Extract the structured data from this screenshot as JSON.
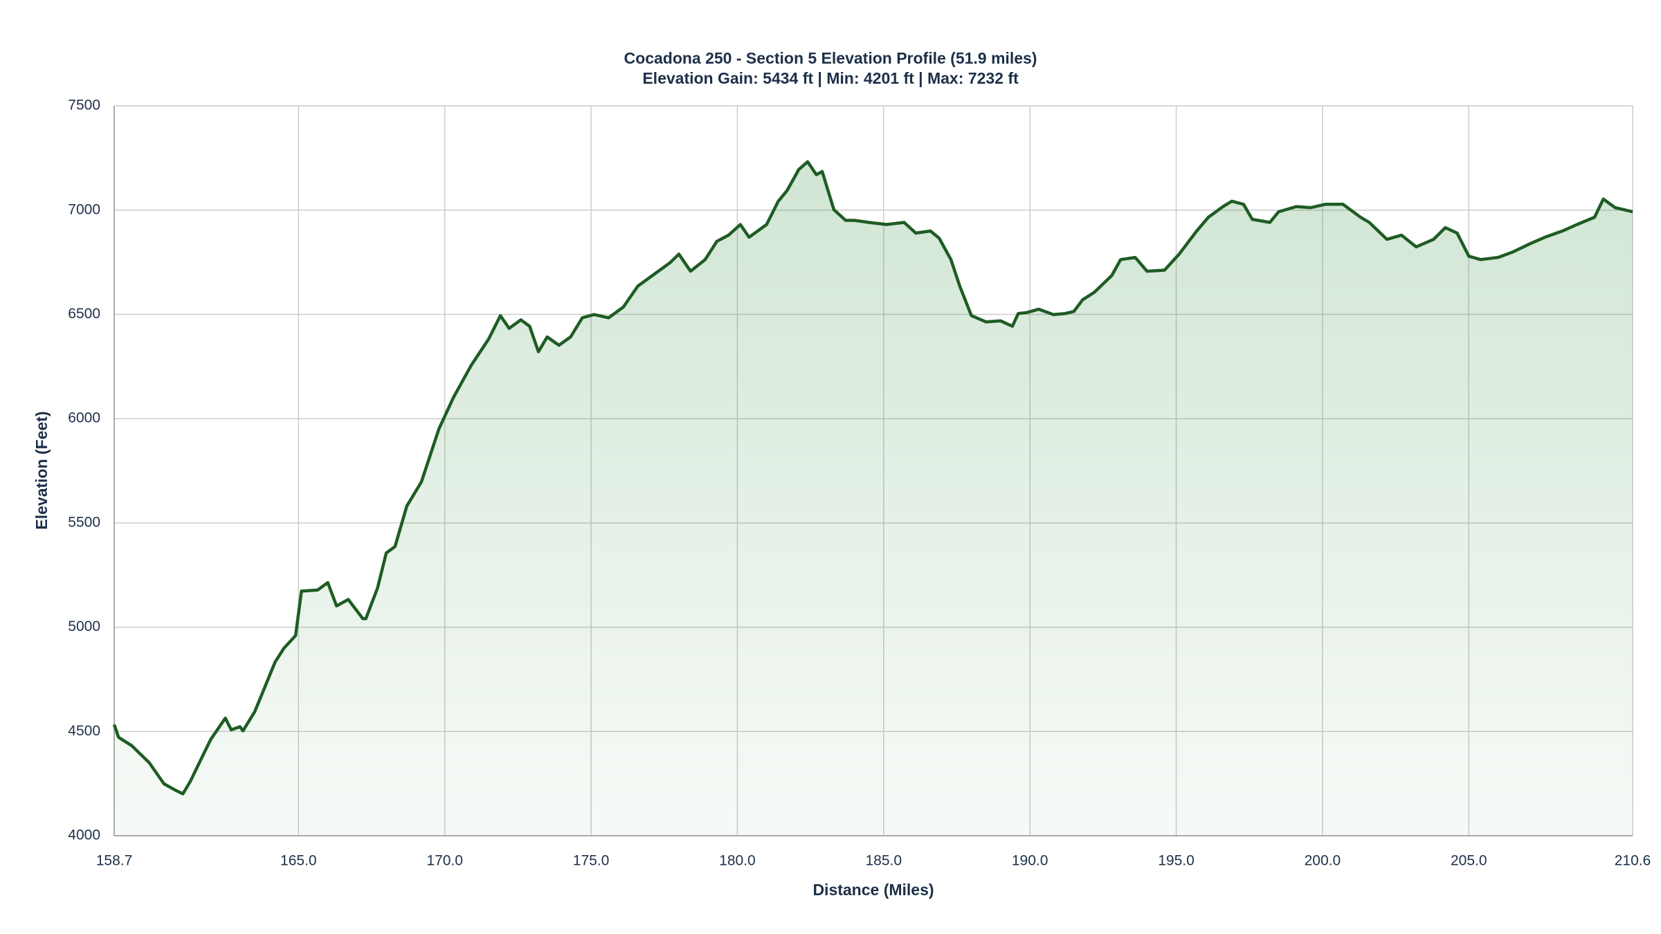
{
  "chart_data": {
    "type": "area",
    "title": "Cocadona 250 - Section 5 Elevation Profile (51.9 miles)",
    "subtitle": "Elevation Gain: 5434 ft | Min: 4201 ft | Max: 7232 ft",
    "x_label": "Distance (Miles)",
    "y_label": "Elevation (Feet)",
    "color": "#1e5c24",
    "grid": true,
    "xlim": [
      158.7,
      210.6
    ],
    "xticks": [
      158.7,
      {
        "value": 165,
        "label": "165.0"
      },
      {
        "value": 170,
        "label": "170.0"
      },
      {
        "value": 175,
        "label": "175.0"
      },
      {
        "value": 180,
        "label": "180.0"
      },
      {
        "value": 185,
        "label": "185.0"
      },
      {
        "value": 190,
        "label": "190.0"
      },
      {
        "value": 195,
        "label": "195.0"
      },
      {
        "value": 200,
        "label": "200.0"
      },
      {
        "value": 205,
        "label": "205.0"
      },
      210.6
    ],
    "ylim": [
      4000,
      7500
    ],
    "yticks": [
      4000,
      4500,
      5000,
      5500,
      6000,
      6500,
      7000,
      7500
    ],
    "x": [
      158.7,
      158.85,
      159.3,
      159.9,
      160.4,
      160.8,
      161.05,
      161.3,
      161.7,
      162.0,
      162.5,
      162.7,
      163.0,
      163.1,
      163.5,
      163.8,
      164.2,
      164.5,
      164.9,
      165.1,
      165.65,
      166.0,
      166.3,
      166.7,
      167.2,
      167.3,
      167.7,
      168.0,
      168.3,
      168.7,
      169.2,
      169.8,
      170.3,
      170.9,
      171.5,
      171.9,
      172.2,
      172.6,
      172.9,
      173.2,
      173.5,
      173.9,
      174.3,
      174.7,
      175.1,
      175.6,
      176.1,
      176.6,
      177.2,
      177.7,
      178.0,
      178.4,
      178.9,
      179.3,
      179.7,
      180.1,
      180.4,
      181.0,
      181.4,
      181.7,
      182.1,
      182.4,
      182.7,
      182.9,
      183.3,
      183.7,
      184.0,
      184.5,
      185.1,
      185.7,
      186.1,
      186.6,
      186.9,
      187.3,
      187.6,
      188.0,
      188.5,
      189.0,
      189.4,
      189.6,
      189.9,
      190.3,
      190.8,
      191.2,
      191.5,
      191.8,
      192.2,
      192.8,
      193.1,
      193.6,
      194.0,
      194.6,
      195.1,
      195.7,
      196.1,
      196.6,
      196.9,
      197.3,
      197.6,
      198.2,
      198.5,
      199.1,
      199.6,
      200.1,
      200.7,
      201.3,
      201.6,
      202.2,
      202.7,
      203.2,
      203.8,
      204.2,
      204.6,
      205.0,
      205.4,
      206.0,
      206.5,
      207.1,
      207.6,
      208.2,
      208.7,
      209.3,
      209.6,
      210.0,
      210.6
    ],
    "values": [
      4533,
      4472,
      4432,
      4350,
      4249,
      4218,
      4201,
      4260,
      4376,
      4462,
      4564,
      4508,
      4523,
      4503,
      4594,
      4696,
      4833,
      4899,
      4960,
      5173,
      5178,
      5214,
      5102,
      5133,
      5041,
      5041,
      5188,
      5356,
      5387,
      5580,
      5697,
      5951,
      6103,
      6255,
      6382,
      6494,
      6433,
      6474,
      6443,
      6321,
      6392,
      6352,
      6392,
      6484,
      6499,
      6484,
      6535,
      6636,
      6697,
      6748,
      6789,
      6707,
      6763,
      6850,
      6880,
      6931,
      6870,
      6931,
      7043,
      7094,
      7195,
      7232,
      7170,
      7185,
      7002,
      6951,
      6951,
      6941,
      6931,
      6941,
      6890,
      6900,
      6865,
      6763,
      6636,
      6494,
      6464,
      6469,
      6443,
      6504,
      6509,
      6525,
      6499,
      6504,
      6514,
      6570,
      6606,
      6687,
      6763,
      6773,
      6707,
      6712,
      6789,
      6900,
      6966,
      7017,
      7043,
      7028,
      6956,
      6941,
      6992,
      7017,
      7012,
      7028,
      7028,
      6966,
      6941,
      6860,
      6880,
      6824,
      6860,
      6916,
      6890,
      6779,
      6763,
      6773,
      6799,
      6839,
      6870,
      6900,
      6931,
      6966,
      7053,
      7012,
      6992
    ]
  }
}
